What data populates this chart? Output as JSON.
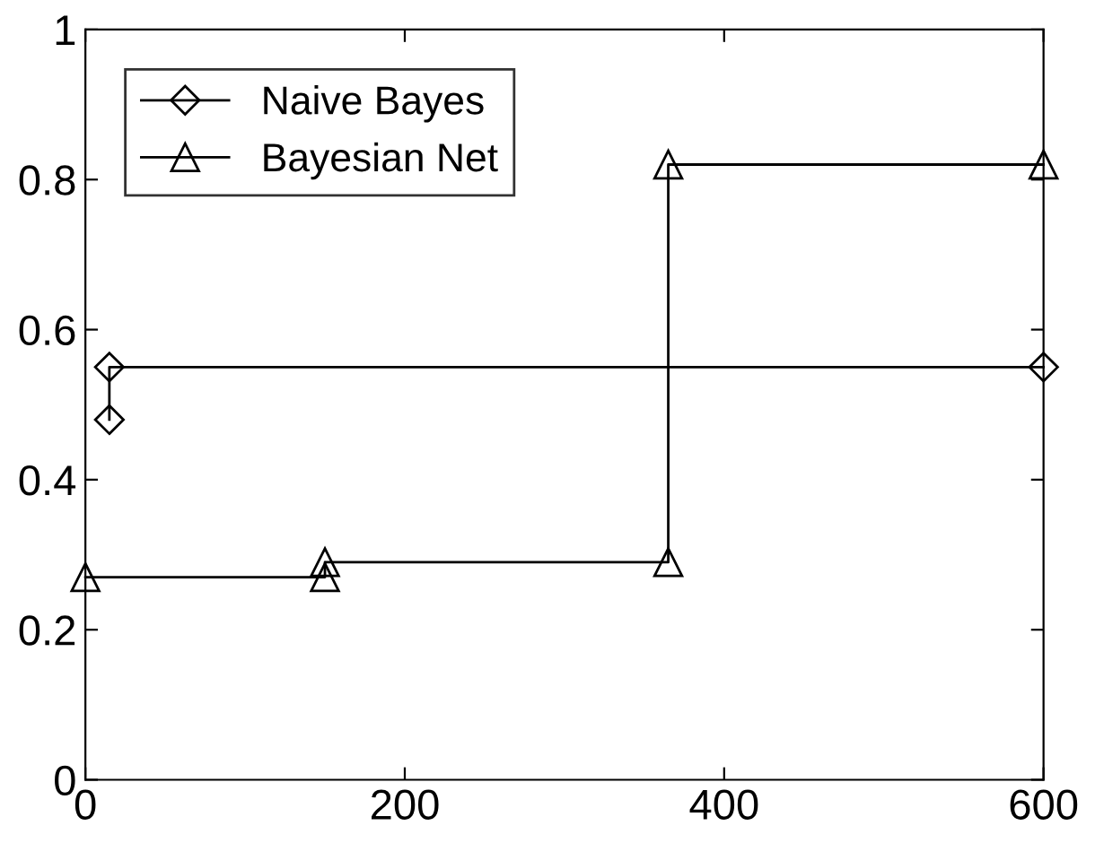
{
  "chart_data": {
    "type": "line",
    "xlim": [
      0,
      600
    ],
    "ylim": [
      0,
      1
    ],
    "xticks": [
      0,
      200,
      400,
      600
    ],
    "yticks": [
      0,
      0.2,
      0.4,
      0.6,
      0.8,
      1
    ],
    "grid": false,
    "legend": "top left",
    "line_style": "solid",
    "series": [
      {
        "name": "Naive Bayes",
        "color": "#000000",
        "marker": "diamond",
        "x": [
          15,
          15,
          600
        ],
        "values": [
          0.48,
          0.55,
          0.55
        ]
      },
      {
        "name": "Bayesian Net",
        "color": "#000000",
        "marker": "triangle",
        "x": [
          0,
          150,
          150,
          365,
          365,
          600
        ],
        "values": [
          0.27,
          0.27,
          0.29,
          0.29,
          0.82,
          0.82
        ]
      }
    ]
  }
}
